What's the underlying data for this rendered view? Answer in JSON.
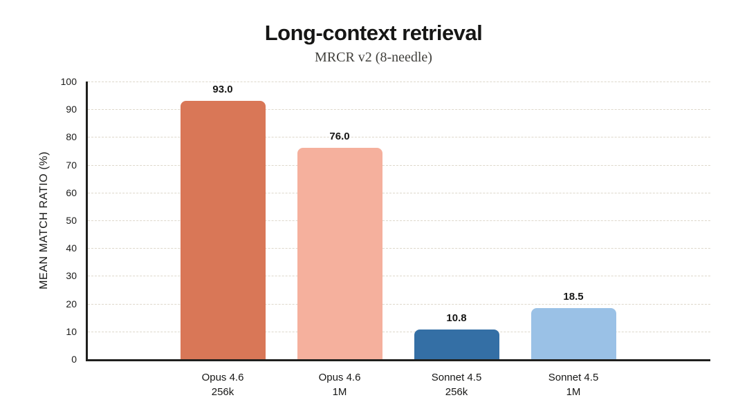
{
  "header": {
    "title": "Long-context retrieval",
    "subtitle": "MRCR v2 (8-needle)"
  },
  "chart_data": {
    "type": "bar",
    "title": "Long-context retrieval",
    "subtitle": "MRCR v2 (8-needle)",
    "xlabel": "",
    "ylabel": "MEAN MATCH RATIO (%)",
    "ylim": [
      0,
      100
    ],
    "yticks": [
      0,
      10,
      20,
      30,
      40,
      50,
      60,
      70,
      80,
      90,
      100
    ],
    "grid": true,
    "legend": "none",
    "categories": [
      [
        "Opus 4.6",
        "256k"
      ],
      [
        "Opus 4.6",
        "1M"
      ],
      [
        "Sonnet 4.5",
        "256k"
      ],
      [
        "Sonnet 4.5",
        "1M"
      ]
    ],
    "values": [
      93.0,
      76.0,
      10.8,
      18.5
    ],
    "value_labels": [
      "93.0",
      "76.0",
      "10.8",
      "18.5"
    ],
    "bar_colors": [
      "#d97757",
      "#f5b09d",
      "#346fa5",
      "#9ac1e6"
    ],
    "colors": {
      "axis": "#1f1f1d",
      "grid": "#ddd7ca",
      "text": "#161615",
      "subtitle_text": "#403f3b",
      "background": "#ffffff"
    }
  }
}
